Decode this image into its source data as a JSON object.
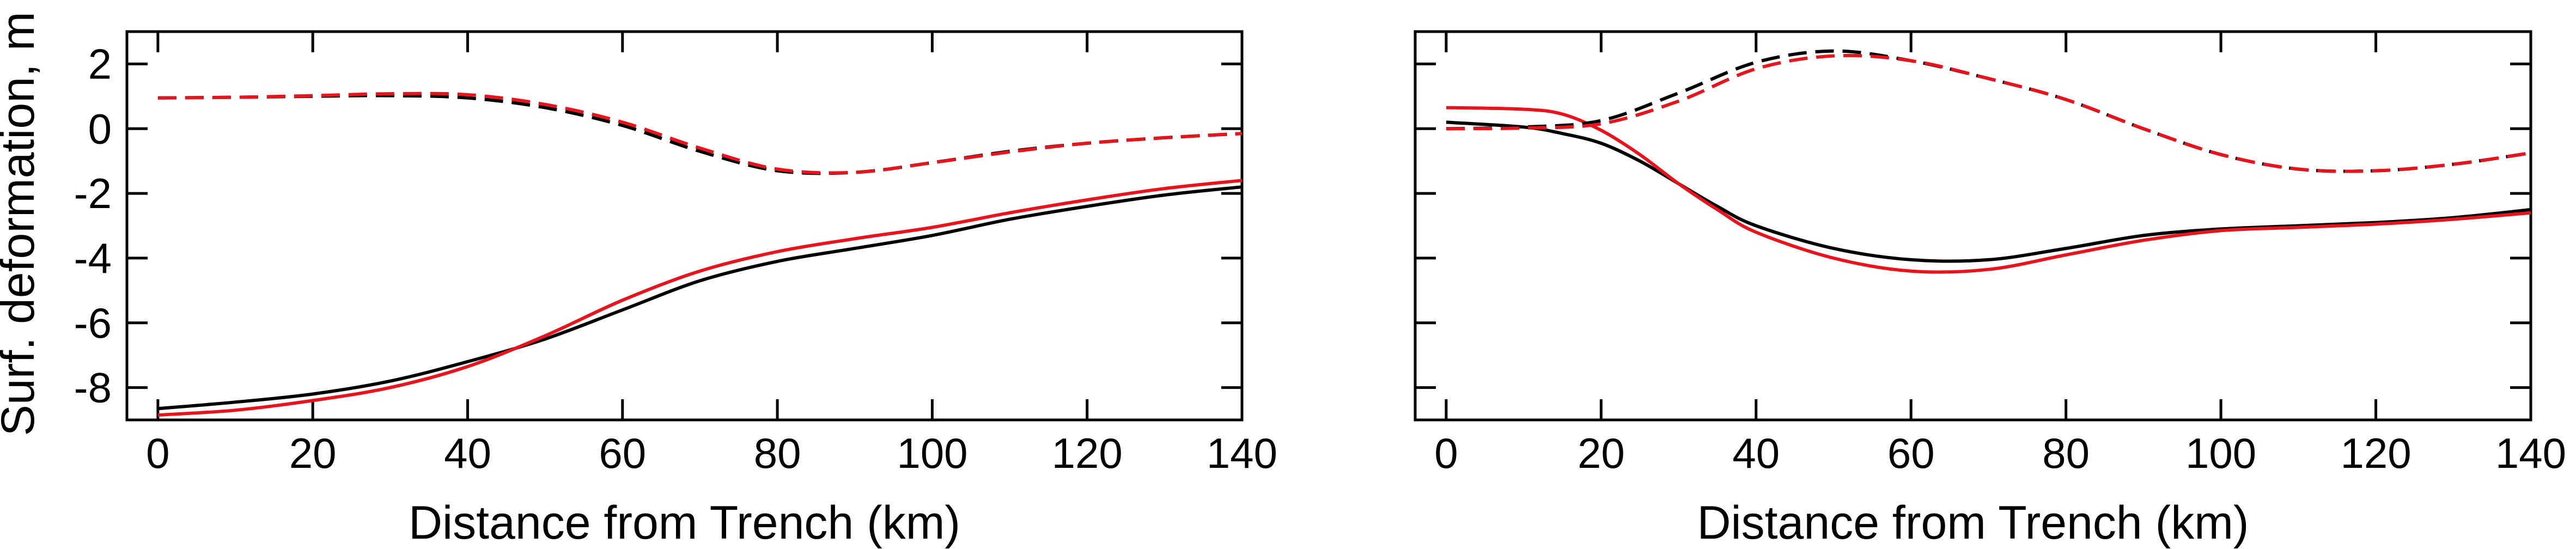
{
  "figure": {
    "ylabel": "Surf. deformation, m"
  },
  "colors": {
    "black_series": "#000000",
    "red_series": "#e8131b"
  },
  "chart_data": [
    {
      "type": "line",
      "xlabel": "Distance from Trench (km)",
      "ylabel": "Surf. deformation, m",
      "xlim": [
        -4,
        140
      ],
      "ylim": [
        -9,
        3
      ],
      "xticks": [
        0,
        20,
        40,
        60,
        80,
        100,
        120,
        140
      ],
      "xtick_labels": [
        "0",
        "20",
        "40",
        "60",
        "80",
        "100",
        "120",
        "140"
      ],
      "yticks": [
        2,
        0,
        -2,
        -4,
        -6,
        -8
      ],
      "ytick_labels": [
        "2",
        "0",
        "-2",
        "-4",
        "-6",
        "-8"
      ],
      "grid": false,
      "legend": "none",
      "series": [
        {
          "color": "#000000",
          "dash": "solid",
          "x": [
            0,
            10,
            20,
            30,
            40,
            50,
            60,
            70,
            80,
            90,
            100,
            110,
            120,
            130,
            140
          ],
          "y": [
            -8.65,
            -8.45,
            -8.2,
            -7.8,
            -7.2,
            -6.5,
            -5.6,
            -4.7,
            -4.1,
            -3.7,
            -3.3,
            -2.8,
            -2.4,
            -2.05,
            -1.8
          ]
        },
        {
          "color": "#e8131b",
          "dash": "solid",
          "x": [
            0,
            10,
            20,
            30,
            40,
            50,
            60,
            70,
            80,
            90,
            100,
            110,
            120,
            130,
            140
          ],
          "y": [
            -8.85,
            -8.7,
            -8.4,
            -8.0,
            -7.35,
            -6.4,
            -5.3,
            -4.4,
            -3.8,
            -3.4,
            -3.05,
            -2.6,
            -2.2,
            -1.85,
            -1.6
          ]
        },
        {
          "color": "#000000",
          "dash": "dashed",
          "x": [
            0,
            10,
            20,
            30,
            40,
            50,
            60,
            70,
            80,
            90,
            100,
            110,
            120,
            130,
            140
          ],
          "y": [
            0.95,
            0.97,
            1.0,
            1.02,
            0.95,
            0.65,
            0.1,
            -0.7,
            -1.3,
            -1.35,
            -1.05,
            -0.7,
            -0.45,
            -0.28,
            -0.15
          ]
        },
        {
          "color": "#e8131b",
          "dash": "dashed",
          "x": [
            0,
            10,
            20,
            30,
            40,
            50,
            60,
            70,
            80,
            90,
            100,
            110,
            120,
            130,
            140
          ],
          "y": [
            0.95,
            0.97,
            1.02,
            1.08,
            1.05,
            0.75,
            0.2,
            -0.6,
            -1.25,
            -1.35,
            -1.05,
            -0.72,
            -0.45,
            -0.28,
            -0.15
          ]
        }
      ]
    },
    {
      "type": "line",
      "xlabel": "Distance from Trench (km)",
      "ylabel": "",
      "xlim": [
        -4,
        140
      ],
      "ylim": [
        -9,
        3
      ],
      "xticks": [
        0,
        20,
        40,
        60,
        80,
        100,
        120,
        140
      ],
      "xtick_labels": [
        "0",
        "20",
        "40",
        "60",
        "80",
        "100",
        "120",
        "140"
      ],
      "yticks": [
        2,
        0,
        -2,
        -4,
        -6,
        -8
      ],
      "ytick_labels": [],
      "grid": false,
      "legend": "none",
      "series": [
        {
          "color": "#000000",
          "dash": "solid",
          "x": [
            0,
            10,
            15,
            20,
            25,
            30,
            35,
            40,
            50,
            60,
            70,
            80,
            90,
            100,
            110,
            120,
            130,
            140
          ],
          "y": [
            0.2,
            0.05,
            -0.15,
            -0.45,
            -1.0,
            -1.7,
            -2.4,
            -3.0,
            -3.7,
            -4.05,
            -4.05,
            -3.7,
            -3.3,
            -3.1,
            -3.0,
            -2.9,
            -2.75,
            -2.5
          ]
        },
        {
          "color": "#e8131b",
          "dash": "solid",
          "x": [
            0,
            10,
            15,
            20,
            25,
            30,
            35,
            40,
            50,
            60,
            70,
            80,
            90,
            100,
            110,
            120,
            130,
            140
          ],
          "y": [
            0.65,
            0.6,
            0.45,
            -0.05,
            -0.8,
            -1.7,
            -2.5,
            -3.2,
            -4.0,
            -4.4,
            -4.35,
            -3.9,
            -3.45,
            -3.15,
            -3.05,
            -2.95,
            -2.8,
            -2.6
          ]
        },
        {
          "color": "#000000",
          "dash": "dashed",
          "x": [
            0,
            10,
            20,
            30,
            40,
            50,
            60,
            70,
            80,
            90,
            100,
            110,
            120,
            130,
            140
          ],
          "y": [
            0.0,
            0.05,
            0.25,
            1.1,
            2.05,
            2.4,
            2.1,
            1.55,
            0.9,
            0.0,
            -0.8,
            -1.25,
            -1.3,
            -1.1,
            -0.75
          ]
        },
        {
          "color": "#e8131b",
          "dash": "dashed",
          "x": [
            0,
            10,
            20,
            30,
            40,
            50,
            60,
            70,
            80,
            90,
            100,
            110,
            120,
            130,
            140
          ],
          "y": [
            0.0,
            0.02,
            0.15,
            0.85,
            1.85,
            2.25,
            2.1,
            1.55,
            0.9,
            0.0,
            -0.8,
            -1.25,
            -1.3,
            -1.1,
            -0.75
          ]
        }
      ]
    }
  ]
}
